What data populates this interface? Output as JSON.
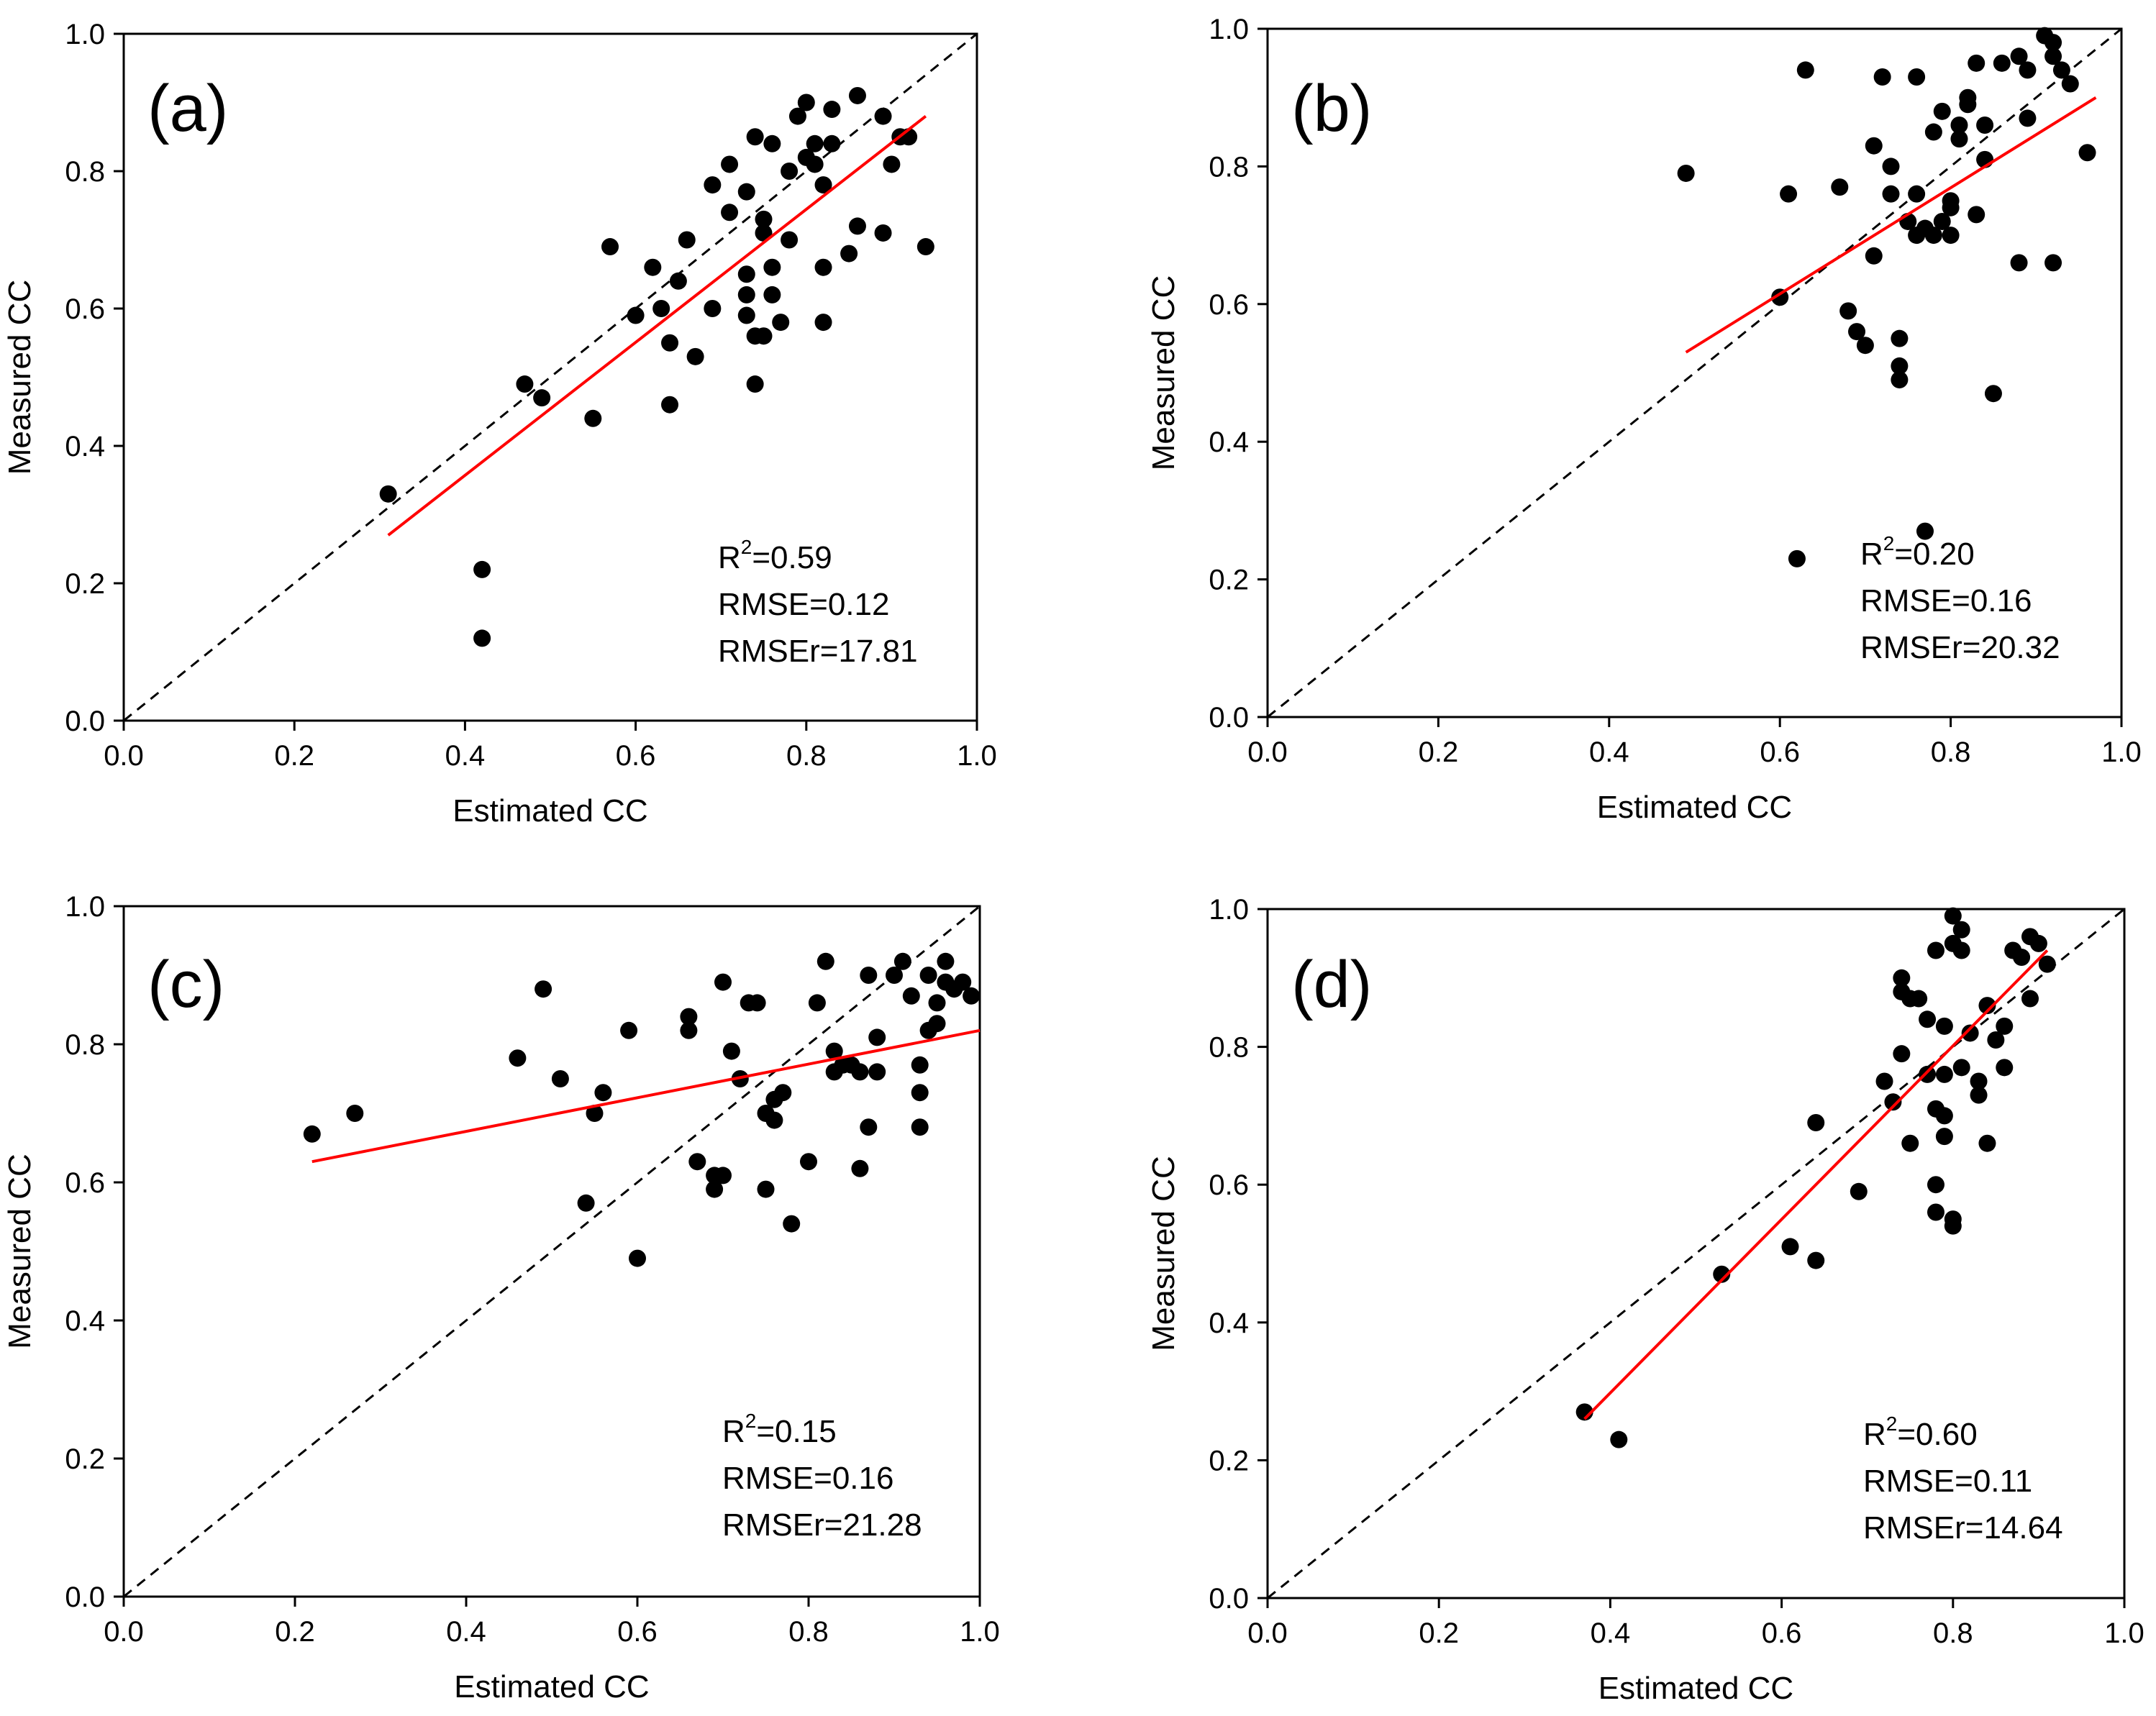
{
  "chart_data": [
    {
      "type": "scatter",
      "panel_label": "(a)",
      "xlabel": "Estimated CC",
      "ylabel": "Measured CC",
      "xlim": [
        0.0,
        1.0
      ],
      "ylim": [
        0.0,
        1.0
      ],
      "xticks": [
        "0.0",
        "0.2",
        "0.4",
        "0.6",
        "0.8",
        "1.0"
      ],
      "yticks": [
        "0.0",
        "0.2",
        "0.4",
        "0.6",
        "0.8",
        "1.0"
      ],
      "grid": false,
      "stats": {
        "r2_prefix": "R",
        "r2_sup": "2",
        "r2_value": "=0.59",
        "rmse": "RMSE=0.12",
        "rmser": "RMSEr=17.81"
      },
      "one_to_one_line": {
        "x": [
          0.0,
          1.0
        ],
        "y": [
          0.0,
          1.0
        ],
        "style": "dashed",
        "color": "#000000"
      },
      "fit_line": {
        "x": [
          0.31,
          0.94
        ],
        "y": [
          0.27,
          0.88
        ],
        "color": "#ff0000"
      },
      "points": [
        [
          0.31,
          0.33
        ],
        [
          0.42,
          0.22
        ],
        [
          0.42,
          0.12
        ],
        [
          0.47,
          0.49
        ],
        [
          0.49,
          0.47
        ],
        [
          0.55,
          0.44
        ],
        [
          0.57,
          0.69
        ],
        [
          0.6,
          0.59
        ],
        [
          0.62,
          0.66
        ],
        [
          0.63,
          0.6
        ],
        [
          0.64,
          0.55
        ],
        [
          0.64,
          0.46
        ],
        [
          0.65,
          0.64
        ],
        [
          0.66,
          0.7
        ],
        [
          0.67,
          0.53
        ],
        [
          0.69,
          0.78
        ],
        [
          0.69,
          0.6
        ],
        [
          0.71,
          0.81
        ],
        [
          0.71,
          0.74
        ],
        [
          0.73,
          0.77
        ],
        [
          0.73,
          0.62
        ],
        [
          0.73,
          0.65
        ],
        [
          0.73,
          0.59
        ],
        [
          0.74,
          0.56
        ],
        [
          0.74,
          0.49
        ],
        [
          0.74,
          0.85
        ],
        [
          0.75,
          0.73
        ],
        [
          0.75,
          0.71
        ],
        [
          0.75,
          0.56
        ],
        [
          0.76,
          0.84
        ],
        [
          0.76,
          0.66
        ],
        [
          0.76,
          0.62
        ],
        [
          0.77,
          0.58
        ],
        [
          0.78,
          0.8
        ],
        [
          0.78,
          0.7
        ],
        [
          0.79,
          0.88
        ],
        [
          0.8,
          0.9
        ],
        [
          0.8,
          0.82
        ],
        [
          0.81,
          0.81
        ],
        [
          0.81,
          0.84
        ],
        [
          0.82,
          0.78
        ],
        [
          0.82,
          0.58
        ],
        [
          0.82,
          0.66
        ],
        [
          0.83,
          0.89
        ],
        [
          0.83,
          0.84
        ],
        [
          0.85,
          0.68
        ],
        [
          0.86,
          0.72
        ],
        [
          0.86,
          0.91
        ],
        [
          0.89,
          0.88
        ],
        [
          0.89,
          0.71
        ],
        [
          0.9,
          0.81
        ],
        [
          0.91,
          0.85
        ],
        [
          0.92,
          0.85
        ],
        [
          0.94,
          0.69
        ]
      ]
    },
    {
      "type": "scatter",
      "panel_label": "(b)",
      "xlabel": "Estimated CC",
      "ylabel": "Measured CC",
      "xlim": [
        0.0,
        1.0
      ],
      "ylim": [
        0.0,
        1.0
      ],
      "xticks": [
        "0.0",
        "0.2",
        "0.4",
        "0.6",
        "0.8",
        "1.0"
      ],
      "yticks": [
        "0.0",
        "0.2",
        "0.4",
        "0.6",
        "0.8",
        "1.0"
      ],
      "grid": false,
      "stats": {
        "r2_prefix": "R",
        "r2_sup": "2",
        "r2_value": "=0.20",
        "rmse": "RMSE=0.16",
        "rmser": "RMSEr=20.32"
      },
      "one_to_one_line": {
        "x": [
          0.0,
          1.0
        ],
        "y": [
          0.0,
          1.0
        ],
        "style": "dashed",
        "color": "#000000"
      },
      "fit_line": {
        "x": [
          0.49,
          0.97
        ],
        "y": [
          0.53,
          0.9
        ],
        "color": "#ff0000"
      },
      "points": [
        [
          0.49,
          0.79
        ],
        [
          0.6,
          0.61
        ],
        [
          0.61,
          0.76
        ],
        [
          0.62,
          0.23
        ],
        [
          0.63,
          0.94
        ],
        [
          0.67,
          0.77
        ],
        [
          0.68,
          0.59
        ],
        [
          0.69,
          0.56
        ],
        [
          0.7,
          0.54
        ],
        [
          0.71,
          0.67
        ],
        [
          0.71,
          0.83
        ],
        [
          0.72,
          0.93
        ],
        [
          0.73,
          0.76
        ],
        [
          0.73,
          0.8
        ],
        [
          0.74,
          0.51
        ],
        [
          0.74,
          0.49
        ],
        [
          0.74,
          0.55
        ],
        [
          0.75,
          0.72
        ],
        [
          0.76,
          0.7
        ],
        [
          0.76,
          0.76
        ],
        [
          0.76,
          0.93
        ],
        [
          0.77,
          0.27
        ],
        [
          0.77,
          0.71
        ],
        [
          0.78,
          0.7
        ],
        [
          0.78,
          0.85
        ],
        [
          0.79,
          0.88
        ],
        [
          0.79,
          0.72
        ],
        [
          0.8,
          0.74
        ],
        [
          0.8,
          0.75
        ],
        [
          0.8,
          0.7
        ],
        [
          0.81,
          0.86
        ],
        [
          0.81,
          0.84
        ],
        [
          0.82,
          0.89
        ],
        [
          0.82,
          0.9
        ],
        [
          0.83,
          0.95
        ],
        [
          0.83,
          0.73
        ],
        [
          0.84,
          0.86
        ],
        [
          0.84,
          0.81
        ],
        [
          0.85,
          0.47
        ],
        [
          0.86,
          0.95
        ],
        [
          0.88,
          0.66
        ],
        [
          0.88,
          0.96
        ],
        [
          0.89,
          0.87
        ],
        [
          0.89,
          0.94
        ],
        [
          0.91,
          0.99
        ],
        [
          0.92,
          0.96
        ],
        [
          0.92,
          0.98
        ],
        [
          0.92,
          0.66
        ],
        [
          0.93,
          0.94
        ],
        [
          0.94,
          0.92
        ],
        [
          0.96,
          0.82
        ]
      ]
    },
    {
      "type": "scatter",
      "panel_label": "(c)",
      "xlabel": "Estimated CC",
      "ylabel": "Measured CC",
      "xlim": [
        0.0,
        1.0
      ],
      "ylim": [
        0.0,
        1.0
      ],
      "xticks": [
        "0.0",
        "0.2",
        "0.4",
        "0.6",
        "0.8",
        "1.0"
      ],
      "yticks": [
        "0.0",
        "0.2",
        "0.4",
        "0.6",
        "0.8",
        "1.0"
      ],
      "grid": false,
      "stats": {
        "r2_prefix": "R",
        "r2_sup": "2",
        "r2_value": "=0.15",
        "rmse": "RMSE=0.16",
        "rmser": "RMSEr=21.28"
      },
      "one_to_one_line": {
        "x": [
          0.0,
          1.0
        ],
        "y": [
          0.0,
          1.0
        ],
        "style": "dashed",
        "color": "#000000"
      },
      "fit_line": {
        "x": [
          0.22,
          1.0
        ],
        "y": [
          0.63,
          0.82
        ],
        "color": "#ff0000"
      },
      "points": [
        [
          0.22,
          0.67
        ],
        [
          0.27,
          0.7
        ],
        [
          0.46,
          0.78
        ],
        [
          0.49,
          0.88
        ],
        [
          0.51,
          0.75
        ],
        [
          0.54,
          0.57
        ],
        [
          0.55,
          0.7
        ],
        [
          0.56,
          0.73
        ],
        [
          0.59,
          0.82
        ],
        [
          0.6,
          0.49
        ],
        [
          0.66,
          0.84
        ],
        [
          0.66,
          0.82
        ],
        [
          0.67,
          0.63
        ],
        [
          0.69,
          0.61
        ],
        [
          0.69,
          0.59
        ],
        [
          0.7,
          0.89
        ],
        [
          0.7,
          0.61
        ],
        [
          0.71,
          0.79
        ],
        [
          0.72,
          0.75
        ],
        [
          0.73,
          0.86
        ],
        [
          0.74,
          0.86
        ],
        [
          0.75,
          0.7
        ],
        [
          0.75,
          0.59
        ],
        [
          0.76,
          0.72
        ],
        [
          0.76,
          0.69
        ],
        [
          0.77,
          0.73
        ],
        [
          0.78,
          0.54
        ],
        [
          0.8,
          0.63
        ],
        [
          0.81,
          0.86
        ],
        [
          0.82,
          0.92
        ],
        [
          0.83,
          0.76
        ],
        [
          0.83,
          0.79
        ],
        [
          0.84,
          0.77
        ],
        [
          0.85,
          0.77
        ],
        [
          0.86,
          0.62
        ],
        [
          0.86,
          0.76
        ],
        [
          0.87,
          0.9
        ],
        [
          0.87,
          0.68
        ],
        [
          0.88,
          0.76
        ],
        [
          0.88,
          0.81
        ],
        [
          0.9,
          0.9
        ],
        [
          0.91,
          0.92
        ],
        [
          0.92,
          0.87
        ],
        [
          0.93,
          0.68
        ],
        [
          0.93,
          0.77
        ],
        [
          0.93,
          0.73
        ],
        [
          0.94,
          0.82
        ],
        [
          0.94,
          0.9
        ],
        [
          0.95,
          0.86
        ],
        [
          0.95,
          0.83
        ],
        [
          0.96,
          0.92
        ],
        [
          0.96,
          0.89
        ],
        [
          0.97,
          0.88
        ],
        [
          0.98,
          0.89
        ],
        [
          0.99,
          0.87
        ]
      ]
    },
    {
      "type": "scatter",
      "panel_label": "(d)",
      "xlabel": "Estimated CC",
      "ylabel": "Measured CC",
      "xlim": [
        0.0,
        1.0
      ],
      "ylim": [
        0.0,
        1.0
      ],
      "xticks": [
        "0.0",
        "0.2",
        "0.4",
        "0.6",
        "0.8",
        "1.0"
      ],
      "yticks": [
        "0.0",
        "0.2",
        "0.4",
        "0.6",
        "0.8",
        "1.0"
      ],
      "grid": false,
      "stats": {
        "r2_prefix": "R",
        "r2_sup": "2",
        "r2_value": "=0.60",
        "rmse": "RMSE=0.11",
        "rmser": "RMSEr=14.64"
      },
      "one_to_one_line": {
        "x": [
          0.0,
          1.0
        ],
        "y": [
          0.0,
          1.0
        ],
        "style": "dashed",
        "color": "#000000"
      },
      "fit_line": {
        "x": [
          0.37,
          0.91
        ],
        "y": [
          0.26,
          0.94
        ],
        "color": "#ff0000"
      },
      "points": [
        [
          0.37,
          0.27
        ],
        [
          0.41,
          0.23
        ],
        [
          0.53,
          0.47
        ],
        [
          0.61,
          0.51
        ],
        [
          0.64,
          0.49
        ],
        [
          0.64,
          0.69
        ],
        [
          0.69,
          0.59
        ],
        [
          0.72,
          0.75
        ],
        [
          0.73,
          0.72
        ],
        [
          0.74,
          0.79
        ],
        [
          0.74,
          0.88
        ],
        [
          0.74,
          0.9
        ],
        [
          0.75,
          0.66
        ],
        [
          0.75,
          0.87
        ],
        [
          0.76,
          0.87
        ],
        [
          0.77,
          0.76
        ],
        [
          0.77,
          0.84
        ],
        [
          0.78,
          0.6
        ],
        [
          0.78,
          0.56
        ],
        [
          0.78,
          0.71
        ],
        [
          0.78,
          0.94
        ],
        [
          0.79,
          0.67
        ],
        [
          0.79,
          0.7
        ],
        [
          0.79,
          0.83
        ],
        [
          0.79,
          0.76
        ],
        [
          0.8,
          0.95
        ],
        [
          0.8,
          0.99
        ],
        [
          0.8,
          0.55
        ],
        [
          0.8,
          0.54
        ],
        [
          0.81,
          0.94
        ],
        [
          0.81,
          0.97
        ],
        [
          0.81,
          0.77
        ],
        [
          0.82,
          0.82
        ],
        [
          0.83,
          0.73
        ],
        [
          0.83,
          0.75
        ],
        [
          0.84,
          0.86
        ],
        [
          0.84,
          0.66
        ],
        [
          0.85,
          0.81
        ],
        [
          0.86,
          0.83
        ],
        [
          0.86,
          0.77
        ],
        [
          0.87,
          0.94
        ],
        [
          0.88,
          0.93
        ],
        [
          0.89,
          0.96
        ],
        [
          0.89,
          0.87
        ],
        [
          0.9,
          0.95
        ],
        [
          0.91,
          0.92
        ]
      ]
    }
  ]
}
